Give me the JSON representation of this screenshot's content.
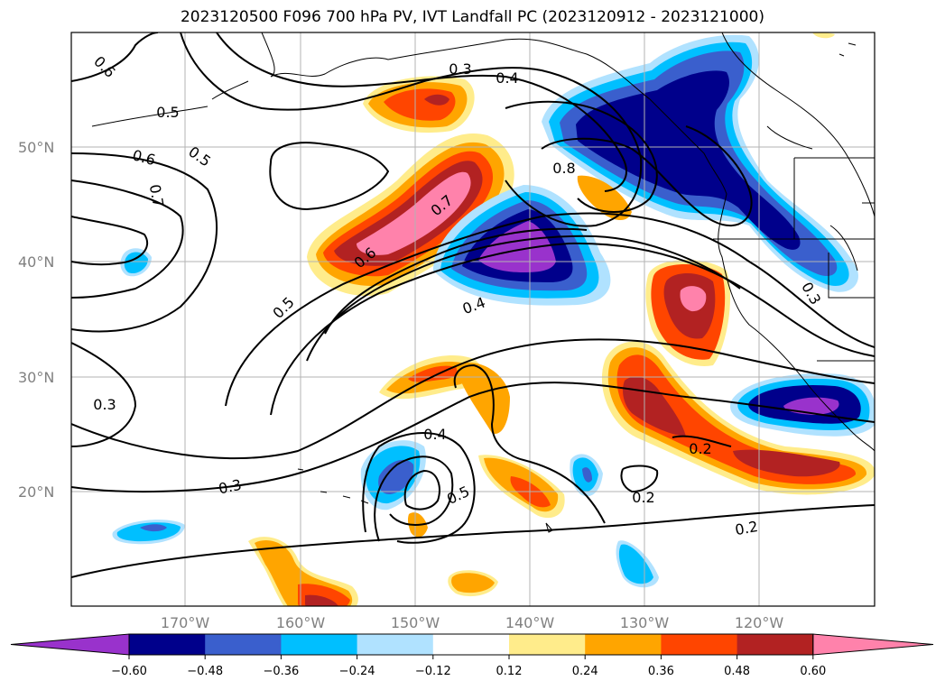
{
  "map": {
    "title": "2023120500 F096 700 hPa PV, IVT Landfall PC (2023120912 - 2023121000)",
    "lat_labels": [
      "50°N",
      "40°N",
      "30°N",
      "20°N"
    ],
    "lon_labels": [
      "170°W",
      "160°W",
      "150°W",
      "140°W",
      "130°W",
      "120°W"
    ],
    "contour_labels": [
      "0.3",
      "0.4",
      "0.5",
      "0.6",
      "0.5",
      "0.6",
      "0.7",
      "0.8",
      "0.7",
      "0.6",
      "0.5",
      "0.4",
      "0.3",
      "0.3",
      "0.4",
      "0.5",
      "0.2",
      "0.2",
      "0.2",
      "0.3"
    ],
    "colorbar": {
      "ticks": [
        "−0.60",
        "−0.48",
        "−0.36",
        "−0.24",
        "−0.12",
        "0.12",
        "0.24",
        "0.36",
        "0.48",
        "0.60"
      ],
      "colors": [
        "#9932cc",
        "#00008b",
        "#3a5fcd",
        "#00bfff",
        "#b0e2ff",
        "#ffffff",
        "#ffec8b",
        "#ffa500",
        "#ff4500",
        "#b22222",
        "#ff82ab"
      ]
    }
  }
}
